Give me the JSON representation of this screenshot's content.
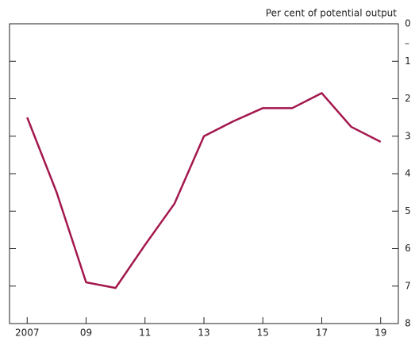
{
  "chart_data": {
    "type": "line",
    "y_label": "Per cent of potential output",
    "sign_note": "–",
    "x": [
      2007,
      2008,
      2009,
      2010,
      2011,
      2012,
      2013,
      2014,
      2015,
      2016,
      2017,
      2018,
      2019
    ],
    "series": [
      {
        "color": "#a3174d",
        "values": [
          2.5,
          4.5,
          6.9,
          7.05,
          5.9,
          4.8,
          3.0,
          2.6,
          2.25,
          2.25,
          1.85,
          2.75,
          3.15
        ]
      }
    ],
    "xlim": [
      2006.4,
      2019.6
    ],
    "xticks": [
      2007,
      {
        "value": 2009,
        "label": "09"
      },
      {
        "value": 2011,
        "label": "11"
      },
      {
        "value": 2013,
        "label": "13"
      },
      {
        "value": 2015,
        "label": "15"
      },
      {
        "value": 2017,
        "label": "17"
      },
      {
        "value": 2019,
        "label": "19"
      }
    ],
    "ylim": [
      8,
      0
    ],
    "yticks": [
      0,
      1,
      2,
      3,
      4,
      5,
      6,
      7,
      8
    ],
    "grid": false
  }
}
